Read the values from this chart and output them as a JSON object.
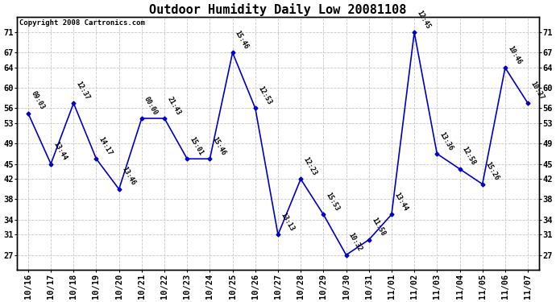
{
  "title": "Outdoor Humidity Daily Low 20081108",
  "copyright": "Copyright 2008 Cartronics.com",
  "background_color": "#ffffff",
  "line_color": "#0000cc",
  "marker_color": "#0000cc",
  "grid_color": "#c8c8c8",
  "dates": [
    "10/16",
    "10/17",
    "10/18",
    "10/19",
    "10/20",
    "10/21",
    "10/22",
    "10/23",
    "10/24",
    "10/25",
    "10/26",
    "10/27",
    "10/28",
    "10/29",
    "10/30",
    "10/31",
    "11/01",
    "11/02",
    "11/03",
    "11/04",
    "11/05",
    "11/06",
    "11/07"
  ],
  "values": [
    55,
    45,
    57,
    46,
    40,
    54,
    54,
    46,
    46,
    67,
    56,
    31,
    42,
    35,
    27,
    30,
    35,
    71,
    47,
    44,
    41,
    64,
    57
  ],
  "labels": [
    "09:03",
    "13:44",
    "12:37",
    "14:17",
    "13:46",
    "00:00",
    "21:43",
    "15:01",
    "15:46",
    "15:46",
    "12:53",
    "13:13",
    "12:23",
    "15:53",
    "10:32",
    "11:58",
    "13:44",
    "12:45",
    "13:36",
    "12:58",
    "15:26",
    "10:46",
    "10:37"
  ],
  "yticks": [
    27,
    31,
    34,
    38,
    42,
    45,
    49,
    53,
    56,
    60,
    64,
    67,
    71
  ],
  "ylim": [
    24,
    74
  ],
  "title_fontsize": 11,
  "label_fontsize": 6.0,
  "tick_fontsize": 7.5,
  "copyright_fontsize": 6.5
}
